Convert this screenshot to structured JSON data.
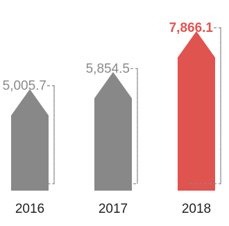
{
  "chart_data": {
    "type": "bar",
    "categories": [
      "2016",
      "2017",
      "2018"
    ],
    "values": [
      5005.7,
      5854.5,
      7866.1
    ],
    "value_labels": [
      "5,005.7",
      "5,854.5",
      "7,866.1"
    ],
    "ylim": [
      0,
      7866.1
    ],
    "highlight_index": 2,
    "colors": {
      "bar": "#888888",
      "highlight": "#e05450",
      "label": "#8a8a8a",
      "axis_label": "#222222",
      "leader": "#888888"
    },
    "grid": false,
    "legend": "none"
  }
}
